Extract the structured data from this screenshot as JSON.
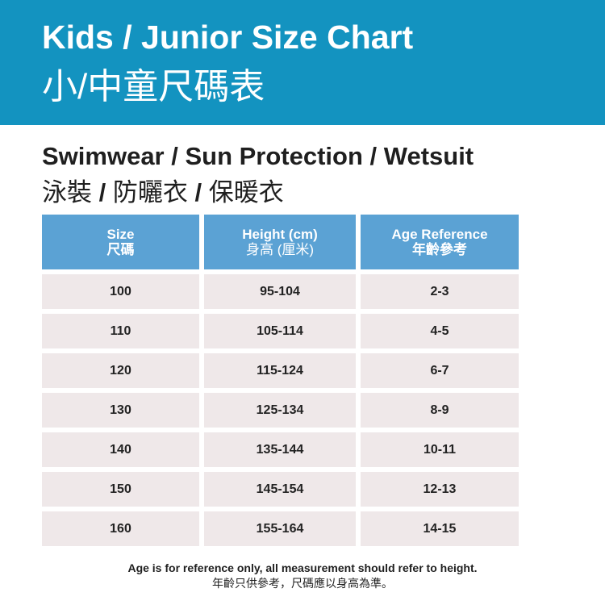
{
  "banner": {
    "title_en": "Kids / Junior Size Chart",
    "title_zh": "小/中童尺碼表",
    "background": "#1393c0"
  },
  "subtitle": {
    "en": "Swimwear / Sun Protection / Wetsuit",
    "zh_parts": [
      "泳裝",
      "/",
      "防曬衣",
      "/",
      "保暖衣"
    ]
  },
  "table": {
    "header_color": "#5ba2d4",
    "row_color": "#efe8e9",
    "headers": [
      {
        "en": "Size",
        "zh": "尺碼"
      },
      {
        "en": "Height (cm)",
        "zh": "身高 (厘米)"
      },
      {
        "en": "Age Reference",
        "zh": "年齡參考"
      }
    ],
    "rows": [
      {
        "size": "100",
        "height": "95-104",
        "age": "2-3"
      },
      {
        "size": "110",
        "height": "105-114",
        "age": "4-5"
      },
      {
        "size": "120",
        "height": "115-124",
        "age": "6-7"
      },
      {
        "size": "130",
        "height": "125-134",
        "age": "8-9"
      },
      {
        "size": "140",
        "height": "135-144",
        "age": "10-11"
      },
      {
        "size": "150",
        "height": "145-154",
        "age": "12-13"
      },
      {
        "size": "160",
        "height": "155-164",
        "age": "14-15"
      }
    ]
  },
  "footnote": {
    "en": "Age is for reference only, all measurement should refer to height.",
    "zh": "年齡只供參考，尺碼應以身高為準。"
  }
}
